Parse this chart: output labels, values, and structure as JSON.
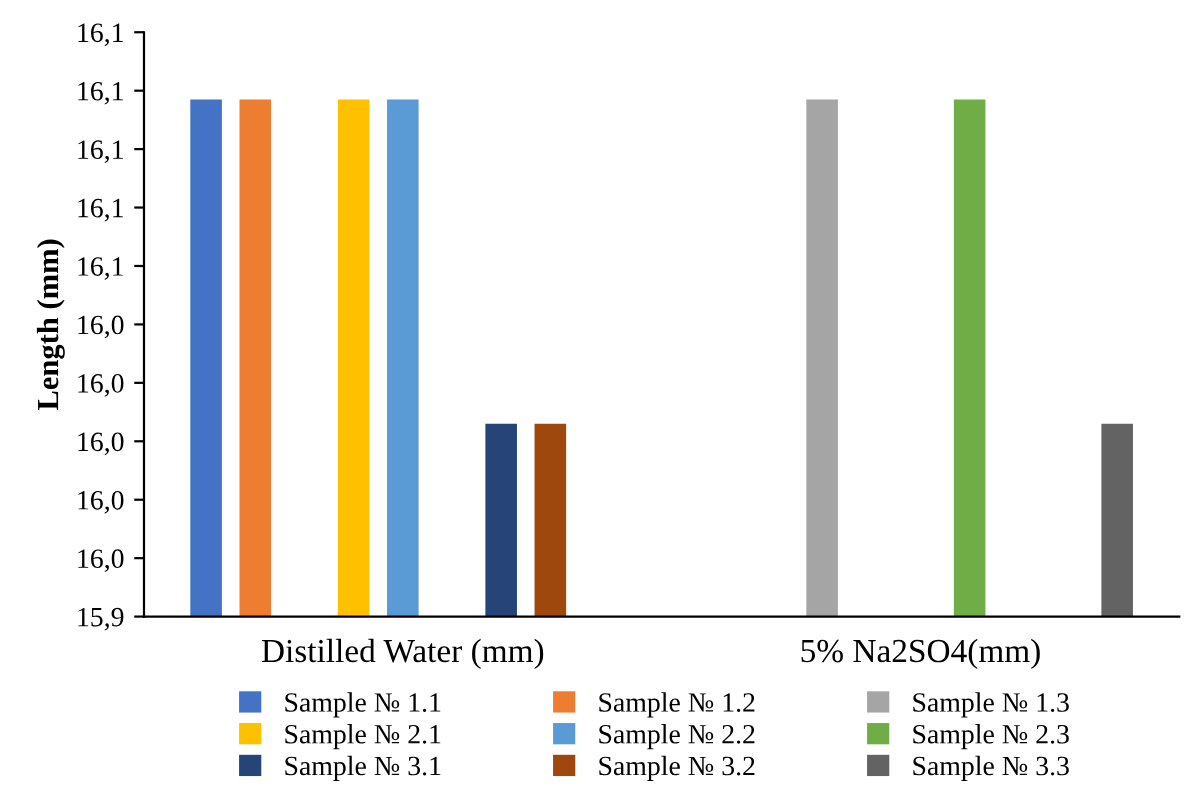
{
  "chart_data": {
    "type": "bar",
    "ylabel": "Length (mm)",
    "categories": [
      "Distilled Water (mm)",
      "5% Na2SO4(mm)"
    ],
    "series": [
      {
        "name": "Sample № 1.1",
        "color": "#4472c4",
        "values": [
          16.117,
          null
        ]
      },
      {
        "name": "Sample № 1.2",
        "color": "#ed7d31",
        "values": [
          16.117,
          null
        ]
      },
      {
        "name": "Sample № 1.3",
        "color": "#a5a5a5",
        "values": [
          null,
          16.117
        ]
      },
      {
        "name": "Sample № 2.1",
        "color": "#ffc000",
        "values": [
          16.117,
          null
        ]
      },
      {
        "name": "Sample № 2.2",
        "color": "#5b9bd5",
        "values": [
          16.117,
          null
        ]
      },
      {
        "name": "Sample № 2.3",
        "color": "#70ad47",
        "values": [
          null,
          16.117
        ]
      },
      {
        "name": "Sample № 3.1",
        "color": "#264478",
        "values": [
          16.006,
          null
        ]
      },
      {
        "name": "Sample № 3.2",
        "color": "#9e480e",
        "values": [
          16.006,
          null
        ]
      },
      {
        "name": "Sample № 3.3",
        "color": "#636363",
        "values": [
          null,
          16.006
        ]
      }
    ],
    "ylim": [
      15.94,
      16.14
    ],
    "yticks": [
      {
        "value": 15.94,
        "label": "15,9"
      },
      {
        "value": 15.96,
        "label": "16,0"
      },
      {
        "value": 15.98,
        "label": "16,0"
      },
      {
        "value": 16.0,
        "label": "16,0"
      },
      {
        "value": 16.02,
        "label": "16,0"
      },
      {
        "value": 16.04,
        "label": "16,0"
      },
      {
        "value": 16.06,
        "label": "16,1"
      },
      {
        "value": 16.08,
        "label": "16,1"
      },
      {
        "value": 16.1,
        "label": "16,1"
      },
      {
        "value": 16.12,
        "label": "16,1"
      },
      {
        "value": 16.14,
        "label": "16,1"
      }
    ],
    "grid": false,
    "legend": "bottom"
  }
}
